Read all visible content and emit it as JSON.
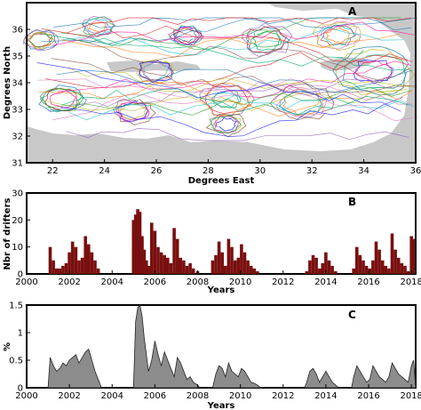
{
  "chart_data": [
    {
      "type": "map",
      "panel_label": "A",
      "xlabel": "Degrees East",
      "ylabel": "Degrees North",
      "xlim": [
        21,
        36
      ],
      "ylim": [
        31,
        37
      ],
      "xticks": [
        "22",
        "24",
        "26",
        "28",
        "30",
        "32",
        "34",
        "36"
      ],
      "yticks": [
        "31",
        "32",
        "33",
        "34",
        "35",
        "36"
      ],
      "colors": {
        "land": "#c8c8c8",
        "sea": "#ffffff",
        "frame": "#000000"
      }
    },
    {
      "type": "bar",
      "panel_label": "B",
      "xlabel": "Years",
      "ylabel": "Nbr of drifters",
      "xlim": [
        2000,
        2018.2
      ],
      "ylim": [
        0,
        30
      ],
      "xticks": [
        "2000",
        "2002",
        "2004",
        "2006",
        "2008",
        "2010",
        "2012",
        "2014",
        "2016",
        "2018"
      ],
      "yticks": [
        "0",
        "10",
        "20",
        "30"
      ],
      "color": "#7a0f0f",
      "series": [
        {
          "x": [
            2001.1,
            2001.25,
            2001.4,
            2001.55,
            2001.7,
            2001.85,
            2002.0,
            2002.15,
            2002.3,
            2002.45,
            2002.6,
            2002.75,
            2002.9,
            2003.05,
            2003.2,
            2003.35,
            2005.0,
            2005.1,
            2005.2,
            2005.3,
            2005.4,
            2005.5,
            2005.6,
            2005.7,
            2005.85,
            2006.0,
            2006.15,
            2006.3,
            2006.45,
            2006.6,
            2006.75,
            2006.9,
            2007.05,
            2007.2,
            2007.35,
            2007.5,
            2007.65,
            2007.8,
            2008.0,
            2008.7,
            2008.85,
            2009.0,
            2009.15,
            2009.3,
            2009.45,
            2009.6,
            2009.75,
            2009.9,
            2010.05,
            2010.2,
            2010.35,
            2010.5,
            2010.65,
            2010.8,
            2013.1,
            2013.25,
            2013.4,
            2013.55,
            2013.7,
            2013.85,
            2014.0,
            2014.15,
            2014.3,
            2014.45,
            2015.3,
            2015.45,
            2015.6,
            2015.75,
            2015.9,
            2016.05,
            2016.2,
            2016.35,
            2016.5,
            2016.65,
            2016.8,
            2016.95,
            2017.1,
            2017.25,
            2017.4,
            2017.55,
            2017.7,
            2017.85,
            2018.0,
            2018.1
          ],
          "y": [
            10,
            5,
            2,
            2,
            3,
            4,
            8,
            12,
            10,
            5,
            6,
            14,
            11,
            8,
            5,
            2,
            20,
            22,
            24,
            23,
            14,
            9,
            5,
            3,
            19,
            16,
            10,
            8,
            7,
            6,
            4,
            17,
            13,
            6,
            5,
            3,
            4,
            2,
            1,
            5,
            7,
            12,
            8,
            3,
            13,
            10,
            5,
            6,
            11,
            8,
            5,
            3,
            2,
            1,
            1,
            5,
            7,
            6,
            2,
            4,
            8,
            5,
            3,
            1,
            2,
            10,
            7,
            5,
            3,
            2,
            5,
            12,
            9,
            5,
            3,
            2,
            15,
            9,
            6,
            4,
            3,
            1,
            14,
            13
          ]
        }
      ]
    },
    {
      "type": "area",
      "panel_label": "C",
      "xlabel": "Years",
      "ylabel": "%",
      "xlim": [
        2000,
        2018.2
      ],
      "ylim": [
        0,
        1.5
      ],
      "xticks": [
        "2000",
        "2002",
        "2004",
        "2006",
        "2008",
        "2010",
        "2012",
        "2014",
        "2016",
        "2018"
      ],
      "yticks": [
        "0",
        "0.5",
        "1",
        "1.5"
      ],
      "color": "#8c8c8c",
      "series": [
        {
          "x": [
            2001.0,
            2001.1,
            2001.25,
            2001.4,
            2001.55,
            2001.7,
            2001.85,
            2002.0,
            2002.15,
            2002.3,
            2002.45,
            2002.6,
            2002.75,
            2002.9,
            2003.05,
            2003.2,
            2003.35,
            2003.5,
            2005.0,
            2005.1,
            2005.2,
            2005.3,
            2005.4,
            2005.5,
            2005.6,
            2005.7,
            2005.85,
            2006.0,
            2006.15,
            2006.3,
            2006.45,
            2006.6,
            2006.75,
            2006.9,
            2007.05,
            2007.2,
            2007.35,
            2007.5,
            2007.65,
            2007.8,
            2008.0,
            2008.1,
            2008.7,
            2008.85,
            2009.0,
            2009.15,
            2009.3,
            2009.45,
            2009.6,
            2009.75,
            2009.9,
            2010.05,
            2010.2,
            2010.35,
            2010.5,
            2010.65,
            2010.8,
            2010.95,
            2013.0,
            2013.1,
            2013.25,
            2013.4,
            2013.55,
            2013.7,
            2013.85,
            2014.0,
            2014.15,
            2014.3,
            2014.45,
            2014.6,
            2015.2,
            2015.3,
            2015.45,
            2015.6,
            2015.75,
            2015.9,
            2016.05,
            2016.2,
            2016.35,
            2016.5,
            2016.65,
            2016.8,
            2016.95,
            2017.1,
            2017.25,
            2017.4,
            2017.55,
            2017.7,
            2017.85,
            2018.0,
            2018.1,
            2018.2
          ],
          "y": [
            0,
            0.55,
            0.4,
            0.3,
            0.35,
            0.45,
            0.4,
            0.5,
            0.55,
            0.6,
            0.45,
            0.55,
            0.65,
            0.7,
            0.5,
            0.3,
            0.15,
            0,
            0,
            1.2,
            1.45,
            1.5,
            1.3,
            0.9,
            0.6,
            0.3,
            0.5,
            0.85,
            0.6,
            0.4,
            0.65,
            0.5,
            0.35,
            0.2,
            0.55,
            0.45,
            0.3,
            0.15,
            0.2,
            0.1,
            0.05,
            0,
            0,
            0.25,
            0.4,
            0.35,
            0.2,
            0.45,
            0.3,
            0.25,
            0.2,
            0.35,
            0.3,
            0.2,
            0.1,
            0.08,
            0.05,
            0,
            0,
            0.1,
            0.3,
            0.35,
            0.25,
            0.1,
            0.2,
            0.3,
            0.2,
            0.1,
            0.05,
            0,
            0,
            0.2,
            0.4,
            0.3,
            0.2,
            0.1,
            0.15,
            0.4,
            0.3,
            0.2,
            0.15,
            0.1,
            0.2,
            0.45,
            0.35,
            0.25,
            0.2,
            0.15,
            0.1,
            0.4,
            0.5,
            0
          ]
        }
      ]
    }
  ]
}
